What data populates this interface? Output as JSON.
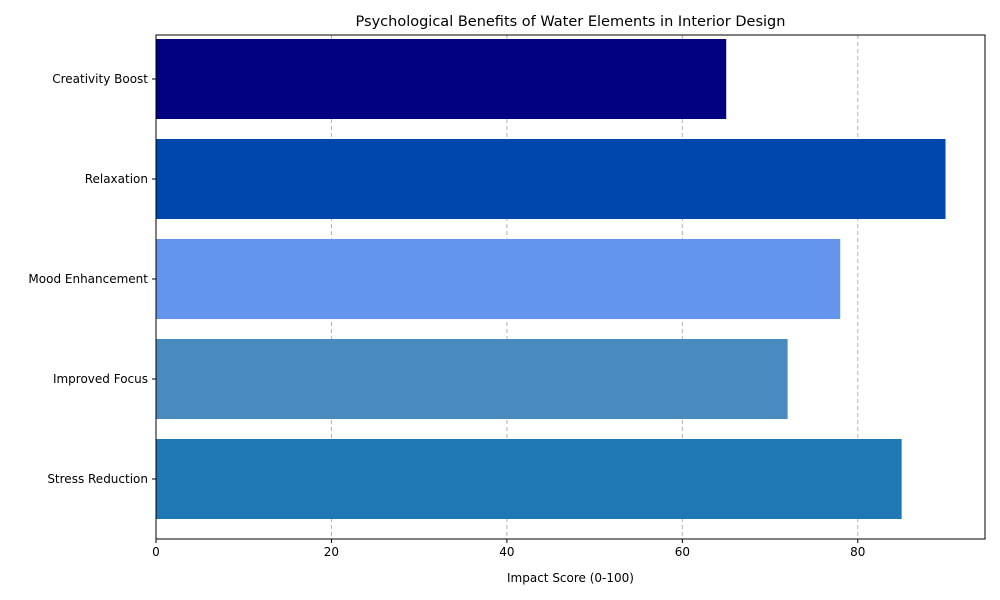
{
  "chart_data": {
    "type": "bar",
    "orientation": "horizontal",
    "title": "Psychological Benefits of Water Elements in Interior Design",
    "xlabel": "Impact Score (0-100)",
    "ylabel": "",
    "categories": [
      "Stress Reduction",
      "Improved Focus",
      "Mood Enhancement",
      "Relaxation",
      "Creativity Boost"
    ],
    "values": [
      85,
      72,
      78,
      90,
      65
    ],
    "colors": [
      "#1f77b4",
      "#4a8bbf",
      "#6495ed",
      "#0047ab",
      "#000080"
    ],
    "xlim": [
      0,
      94.5
    ],
    "xticks": [
      "0",
      "20",
      "40",
      "60",
      "80"
    ],
    "grid": "x-dashed",
    "legend": "none"
  }
}
